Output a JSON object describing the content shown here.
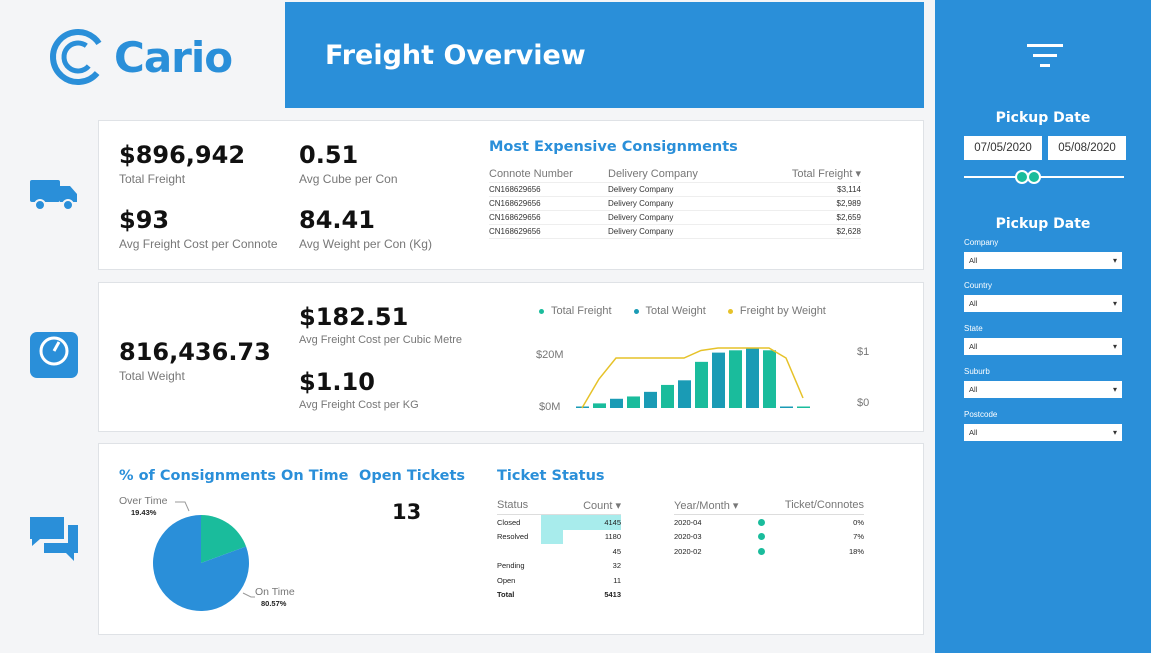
{
  "brand": {
    "name": "Cario"
  },
  "header": {
    "title": "Freight Overview"
  },
  "kpis": {
    "total_freight": {
      "value": "$896,942",
      "label": "Total Freight"
    },
    "avg_cube": {
      "value": "0.51",
      "label": "Avg Cube per Con"
    },
    "avg_freight_cost": {
      "value": "$93",
      "label": "Avg Freight Cost per Connote"
    },
    "avg_weight": {
      "value": "84.41",
      "label": "Avg Weight per Con (Kg)"
    },
    "total_weight": {
      "value": "816,436.73",
      "label": "Total Weight"
    },
    "cost_per_cubic": {
      "value": "$182.51",
      "label": "Avg Freight Cost per Cubic Metre"
    },
    "cost_per_kg": {
      "value": "$1.10",
      "label": "Avg Freight Cost per KG"
    }
  },
  "consignments": {
    "title": "Most Expensive Consignments",
    "headers": [
      "Connote Number",
      "Delivery Company",
      "Total Freight"
    ],
    "rows": [
      [
        "CN168629656",
        "Delivery Company",
        "$3,114"
      ],
      [
        "CN168629656",
        "Delivery Company",
        "$2,989"
      ],
      [
        "CN168629656",
        "Delivery Company",
        "$2,659"
      ],
      [
        "CN168629656",
        "Delivery Company",
        "$2,628"
      ]
    ]
  },
  "chart_data": {
    "type": "bar",
    "series": [
      {
        "name": "Total Freight",
        "color": "#1abc9c",
        "values": [
          0.2,
          1.0,
          2.0,
          2.5,
          3.5,
          5.0,
          6.0,
          10.0,
          12.0,
          12.5,
          13.0,
          12.5,
          0.2,
          0.2
        ]
      },
      {
        "name": "Total Weight",
        "color": "#1a9bb5",
        "values": [
          0.2,
          1.0,
          2.0,
          2.5,
          3.5,
          5.0,
          6.0,
          10.0,
          12.0,
          12.5,
          13.0,
          12.5,
          0.2,
          0.2
        ]
      },
      {
        "name": "Freight by Weight",
        "color": "#e6c229",
        "values": [
          0.0,
          0.58,
          1.0,
          1.0,
          1.0,
          1.0,
          1.0,
          1.15,
          1.2,
          1.2,
          1.2,
          1.2,
          1.0,
          0.2
        ]
      }
    ],
    "bar_colors": [
      "#1a9bb5",
      "#1abc9c",
      "#1a9bb5",
      "#1abc9c",
      "#1a9bb5",
      "#1abc9c",
      "#1a9bb5",
      "#1abc9c",
      "#1a9bb5",
      "#1abc9c",
      "#1a9bb5",
      "#1abc9c",
      "#1a9bb5",
      "#1abc9c"
    ],
    "y_left_ticks": [
      "$20M",
      "$0M"
    ],
    "y_right_ticks": [
      "$1",
      "$0"
    ]
  },
  "on_time": {
    "title": "% of Consignments On Time",
    "slices": [
      {
        "name": "Over Time",
        "value": "19.43%",
        "pct": 19.43,
        "color": "#1abc9c"
      },
      {
        "name": "On Time",
        "value": "80.57%",
        "pct": 80.57,
        "color": "#2a8fd9"
      }
    ]
  },
  "open_tickets": {
    "title": "Open Tickets",
    "value": "13"
  },
  "ticket_status": {
    "title": "Ticket Status",
    "headers": [
      "Status",
      "Count"
    ],
    "rows": [
      {
        "status": "Closed",
        "count": "4145",
        "fill": 1.0
      },
      {
        "status": "Resolved",
        "count": "1180",
        "fill": 0.28
      },
      {
        "status": "",
        "count": "45",
        "fill": 0
      },
      {
        "status": "Pending",
        "count": "32",
        "fill": 0
      },
      {
        "status": "Open",
        "count": "11",
        "fill": 0
      },
      {
        "status": "Total",
        "count": "5413",
        "fill": 0
      }
    ],
    "ym_headers": [
      "Year/Month",
      "Ticket/Connotes"
    ],
    "ym_rows": [
      [
        "2020-04",
        "0%"
      ],
      [
        "2020-03",
        "7%"
      ],
      [
        "2020-02",
        "18%"
      ]
    ]
  },
  "filters": {
    "pickup_title": "Pickup Date",
    "date_from": "07/05/2020",
    "date_to": "05/08/2020",
    "second_title": "Pickup Date",
    "selects": [
      {
        "label": "Company",
        "value": "All"
      },
      {
        "label": "Country",
        "value": "All"
      },
      {
        "label": "State",
        "value": "All"
      },
      {
        "label": "Suburb",
        "value": "All"
      },
      {
        "label": "Postcode",
        "value": "All"
      }
    ]
  }
}
